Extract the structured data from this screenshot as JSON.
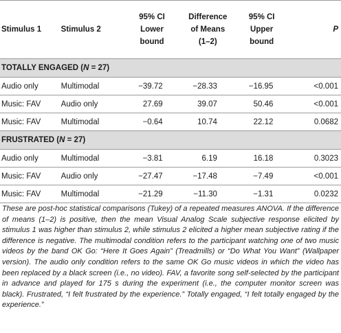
{
  "table": {
    "headers": {
      "stimulus1": "Stimulus 1",
      "stimulus2": "Stimulus 2",
      "ci_lower_line1": "95% CI",
      "ci_lower_line2": "Lower",
      "ci_lower_line3": "bound",
      "diff_line1": "Difference",
      "diff_line2": "of Means",
      "diff_line3": "(1–2)",
      "ci_upper_line1": "95% CI",
      "ci_upper_line2": "Upper",
      "ci_upper_line3": "bound",
      "p": "P"
    },
    "groups": [
      {
        "label_main": "TOTALLY ENGAGED (",
        "label_n": "N",
        "label_rest": " = 27)",
        "rows": [
          {
            "s1": "Audio only",
            "s2": "Multimodal",
            "lower": "−39.72",
            "diff": "−28.33",
            "upper": "−16.95",
            "p": "<0.001"
          },
          {
            "s1": "Music: FAV",
            "s2": "Audio only",
            "lower": "27.69",
            "diff": "39.07",
            "upper": "50.46",
            "p": "<0.001"
          },
          {
            "s1": "Music: FAV",
            "s2": "Multimodal",
            "lower": "−0.64",
            "diff": "10.74",
            "upper": "22.12",
            "p": "0.0682"
          }
        ]
      },
      {
        "label_main": "FRUSTRATED (",
        "label_n": "N",
        "label_rest": " = 27)",
        "rows": [
          {
            "s1": "Audio only",
            "s2": "Multimodal",
            "lower": "−3.81",
            "diff": "6.19",
            "upper": "16.18",
            "p": "0.3023"
          },
          {
            "s1": "Music: FAV",
            "s2": "Audio only",
            "lower": "−27.47",
            "diff": "−17.48",
            "upper": "−7.49",
            "p": "<0.001"
          },
          {
            "s1": "Music: FAV",
            "s2": "Multimodal",
            "lower": "−21.29",
            "diff": "−11.30",
            "upper": "−1.31",
            "p": "0.0232"
          }
        ]
      }
    ]
  },
  "footnote": "These are post-hoc statistical comparisons (Tukey) of a repeated measures ANOVA. If the difference of means (1–2) is positive, then the mean Visual Analog Scale subjective response elicited by stimulus 1 was higher than stimulus 2, while stimulus 2 elicited a higher mean subjective rating if the difference is negative. The multimodal condition refers to the participant watching one of two music videos by the band OK Go: “Here It Goes Again” (Treadmills) or “Do What You Want” (Wallpaper version). The audio only condition refers to the same OK Go music videos in which the video has been replaced by a black screen (i.e., no video). FAV, a favorite song self-selected by the participant in advance and played for 175 s during the experiment (i.e., the computer monitor screen was black). Frustrated, “I felt frustrated by the experience.” Totally engaged, “I felt totally engaged by the experience.”"
}
